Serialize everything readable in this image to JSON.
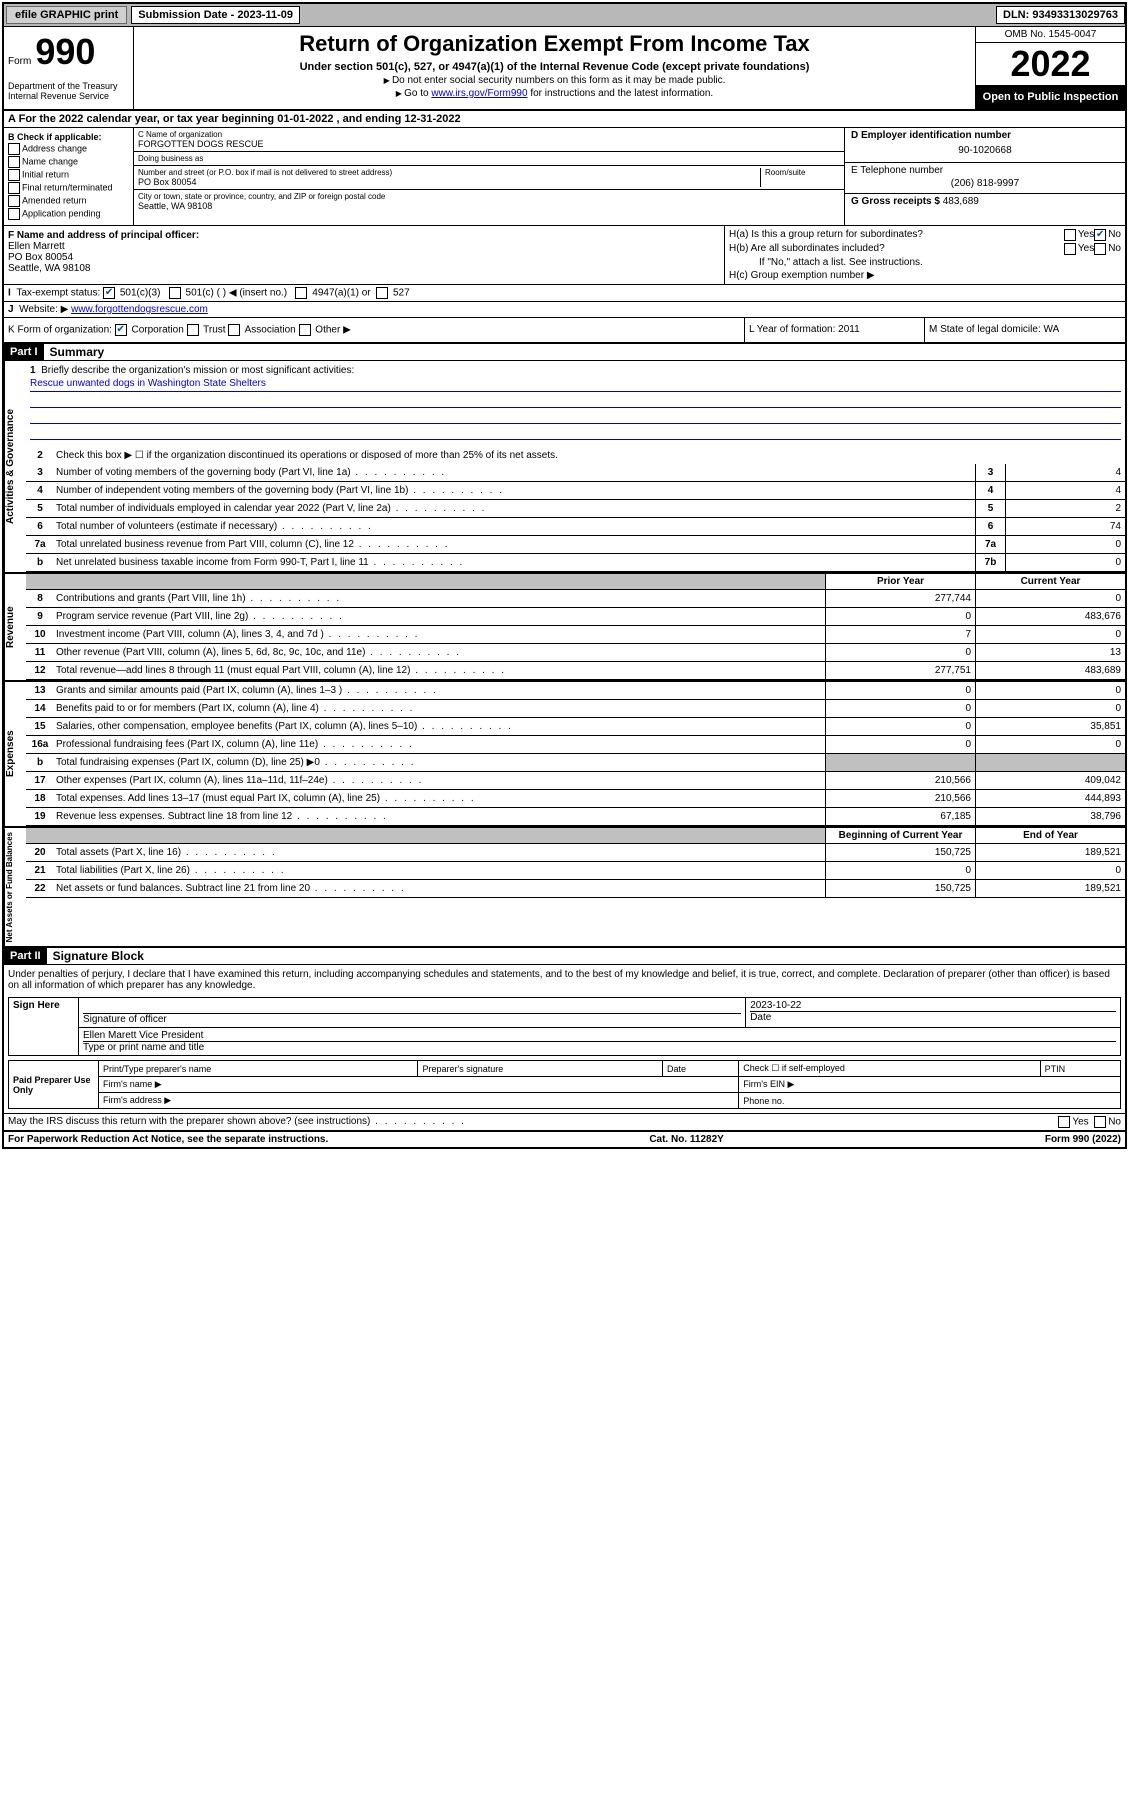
{
  "topbar": {
    "efile": "efile GRAPHIC print",
    "submission_label": "Submission Date - 2023-11-09",
    "dln": "DLN: 93493313029763"
  },
  "header": {
    "form_prefix": "Form",
    "form_num": "990",
    "dept": "Department of the Treasury\nInternal Revenue Service",
    "title": "Return of Organization Exempt From Income Tax",
    "subtitle": "Under section 501(c), 527, or 4947(a)(1) of the Internal Revenue Code (except private foundations)",
    "instr1": "Do not enter social security numbers on this form as it may be made public.",
    "instr2_pre": "Go to ",
    "instr2_link": "www.irs.gov/Form990",
    "instr2_post": " for instructions and the latest information.",
    "omb": "OMB No. 1545-0047",
    "year": "2022",
    "open": "Open to Public Inspection"
  },
  "row_a": "For the 2022 calendar year, or tax year beginning 01-01-2022   , and ending 12-31-2022",
  "b": {
    "label": "B Check if applicable:",
    "opts": [
      "Address change",
      "Name change",
      "Initial return",
      "Final return/terminated",
      "Amended return",
      "Application pending"
    ]
  },
  "c": {
    "name_lbl": "C Name of organization",
    "name": "FORGOTTEN DOGS RESCUE",
    "dba_lbl": "Doing business as",
    "dba": "",
    "addr_lbl": "Number and street (or P.O. box if mail is not delivered to street address)",
    "room_lbl": "Room/suite",
    "addr": "PO Box 80054",
    "city_lbl": "City or town, state or province, country, and ZIP or foreign postal code",
    "city": "Seattle, WA  98108"
  },
  "d": {
    "lbl": "D Employer identification number",
    "val": "90-1020668"
  },
  "e": {
    "lbl": "E Telephone number",
    "val": "(206) 818-9997"
  },
  "g": {
    "lbl": "G Gross receipts $",
    "val": "483,689"
  },
  "f": {
    "lbl": "F Name and address of principal officer:",
    "name": "Ellen Marrett",
    "addr1": "PO Box 80054",
    "addr2": "Seattle, WA  98108"
  },
  "h": {
    "a_lbl": "H(a)  Is this a group return for subordinates?",
    "a_no_checked": true,
    "b_lbl": "H(b)  Are all subordinates included?",
    "b_note": "If \"No,\" attach a list. See instructions.",
    "c_lbl": "H(c)  Group exemption number ▶"
  },
  "i": {
    "lbl": "Tax-exempt status:",
    "c3": "501(c)(3)",
    "c": "501(c) (  ) ◀ (insert no.)",
    "a1": "4947(a)(1) or",
    "s527": "527"
  },
  "j": {
    "lbl": "Website: ▶",
    "val": "www.forgottendogsrescue.com"
  },
  "k": {
    "lbl": "K Form of organization:",
    "corp": "Corporation",
    "trust": "Trust",
    "assoc": "Association",
    "other": "Other ▶"
  },
  "l": {
    "lbl": "L Year of formation:",
    "val": "2011"
  },
  "m": {
    "lbl": "M State of legal domicile:",
    "val": "WA"
  },
  "part1": {
    "hdr": "Part I",
    "title": "Summary"
  },
  "gov": {
    "side": "Activities & Governance",
    "l1": "Briefly describe the organization's mission or most significant activities:",
    "mission": "Rescue unwanted dogs in Washington State Shelters",
    "l2": "Check this box ▶ ☐  if the organization discontinued its operations or disposed of more than 25% of its net assets.",
    "rows": [
      {
        "n": "3",
        "t": "Number of voting members of the governing body (Part VI, line 1a)",
        "box": "3",
        "v": "4"
      },
      {
        "n": "4",
        "t": "Number of independent voting members of the governing body (Part VI, line 1b)",
        "box": "4",
        "v": "4"
      },
      {
        "n": "5",
        "t": "Total number of individuals employed in calendar year 2022 (Part V, line 2a)",
        "box": "5",
        "v": "2"
      },
      {
        "n": "6",
        "t": "Total number of volunteers (estimate if necessary)",
        "box": "6",
        "v": "74"
      },
      {
        "n": "7a",
        "t": "Total unrelated business revenue from Part VIII, column (C), line 12",
        "box": "7a",
        "v": "0"
      },
      {
        "n": "b",
        "t": "Net unrelated business taxable income from Form 990-T, Part I, line 11",
        "box": "7b",
        "v": "0"
      }
    ]
  },
  "rev": {
    "side": "Revenue",
    "hdr_prior": "Prior Year",
    "hdr_curr": "Current Year",
    "rows": [
      {
        "n": "8",
        "t": "Contributions and grants (Part VIII, line 1h)",
        "p": "277,744",
        "c": "0"
      },
      {
        "n": "9",
        "t": "Program service revenue (Part VIII, line 2g)",
        "p": "0",
        "c": "483,676"
      },
      {
        "n": "10",
        "t": "Investment income (Part VIII, column (A), lines 3, 4, and 7d )",
        "p": "7",
        "c": "0"
      },
      {
        "n": "11",
        "t": "Other revenue (Part VIII, column (A), lines 5, 6d, 8c, 9c, 10c, and 11e)",
        "p": "0",
        "c": "13"
      },
      {
        "n": "12",
        "t": "Total revenue—add lines 8 through 11 (must equal Part VIII, column (A), line 12)",
        "p": "277,751",
        "c": "483,689"
      }
    ]
  },
  "exp": {
    "side": "Expenses",
    "rows": [
      {
        "n": "13",
        "t": "Grants and similar amounts paid (Part IX, column (A), lines 1–3 )",
        "p": "0",
        "c": "0"
      },
      {
        "n": "14",
        "t": "Benefits paid to or for members (Part IX, column (A), line 4)",
        "p": "0",
        "c": "0"
      },
      {
        "n": "15",
        "t": "Salaries, other compensation, employee benefits (Part IX, column (A), lines 5–10)",
        "p": "0",
        "c": "35,851"
      },
      {
        "n": "16a",
        "t": "Professional fundraising fees (Part IX, column (A), line 11e)",
        "p": "0",
        "c": "0"
      },
      {
        "n": "b",
        "t": "Total fundraising expenses (Part IX, column (D), line 25) ▶0",
        "p": "",
        "c": "",
        "gray": true
      },
      {
        "n": "17",
        "t": "Other expenses (Part IX, column (A), lines 11a–11d, 11f–24e)",
        "p": "210,566",
        "c": "409,042"
      },
      {
        "n": "18",
        "t": "Total expenses. Add lines 13–17 (must equal Part IX, column (A), line 25)",
        "p": "210,566",
        "c": "444,893"
      },
      {
        "n": "19",
        "t": "Revenue less expenses. Subtract line 18 from line 12",
        "p": "67,185",
        "c": "38,796"
      }
    ]
  },
  "net": {
    "side": "Net Assets or Fund Balances",
    "hdr_beg": "Beginning of Current Year",
    "hdr_end": "End of Year",
    "rows": [
      {
        "n": "20",
        "t": "Total assets (Part X, line 16)",
        "p": "150,725",
        "c": "189,521"
      },
      {
        "n": "21",
        "t": "Total liabilities (Part X, line 26)",
        "p": "0",
        "c": "0"
      },
      {
        "n": "22",
        "t": "Net assets or fund balances. Subtract line 21 from line 20",
        "p": "150,725",
        "c": "189,521"
      }
    ]
  },
  "part2": {
    "hdr": "Part II",
    "title": "Signature Block"
  },
  "sig": {
    "decl": "Under penalties of perjury, I declare that I have examined this return, including accompanying schedules and statements, and to the best of my knowledge and belief, it is true, correct, and complete. Declaration of preparer (other than officer) is based on all information of which preparer has any knowledge.",
    "sign_here": "Sign Here",
    "sig_of_officer": "Signature of officer",
    "date_lbl": "Date",
    "date_val": "2023-10-22",
    "officer_name": "Ellen Marett Vice President",
    "type_name": "Type or print name and title",
    "paid": "Paid Preparer Use Only",
    "prep_name": "Print/Type preparer's name",
    "prep_sig": "Preparer's signature",
    "prep_date": "Date",
    "check_self": "Check ☐ if self-employed",
    "ptin": "PTIN",
    "firm_name": "Firm's name  ▶",
    "firm_ein": "Firm's EIN ▶",
    "firm_addr": "Firm's address ▶",
    "phone": "Phone no."
  },
  "footer": {
    "discuss": "May the IRS discuss this return with the preparer shown above? (see instructions)",
    "paperwork": "For Paperwork Reduction Act Notice, see the separate instructions.",
    "cat": "Cat. No. 11282Y",
    "form": "Form 990 (2022)"
  }
}
